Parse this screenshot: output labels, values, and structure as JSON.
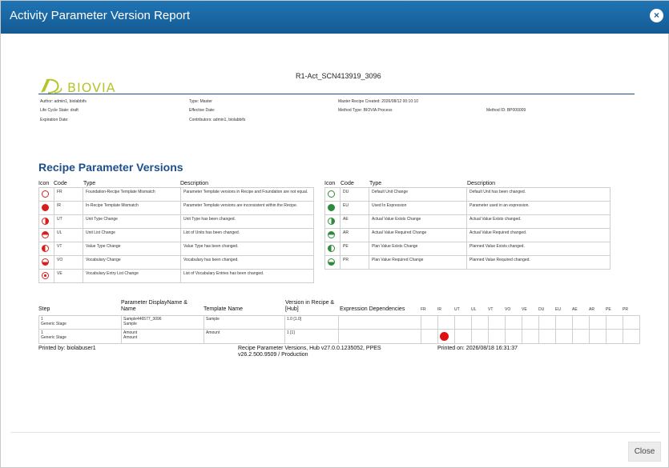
{
  "dialog": {
    "title": "Activity Parameter Version Report",
    "close_icon": "×",
    "close_label": "Close"
  },
  "report": {
    "title": "R1-Act_SCN413919_3096",
    "logo_text": "BIOVIA",
    "meta": {
      "author": "Author: admin1, biolabbifs",
      "lifecycle": "Life Cycle State: draft",
      "expiration": "Expiration Date:",
      "type": "Type: Master",
      "effective": "Effective Date:",
      "contributors": "Contributors: admin1, biolabbifs",
      "created": "Master Recipe Created: 2026/08/12 00:10:10",
      "method_type": "Method Type: BIOVIA Process",
      "method_id": "Method ID: BP000009"
    },
    "section_title": "Recipe Parameter Versions",
    "legend_headers": {
      "icon": "Icon",
      "code": "Code",
      "type": "Type",
      "description": "Description"
    },
    "legend_left": [
      {
        "icon": "red-ring",
        "code": "FR",
        "type": "Foundation-Recipe Template Mismatch",
        "description": "Parameter Template versions in Recipe and Foundation are not equal."
      },
      {
        "icon": "red-filled",
        "code": "IR",
        "type": "In-Recipe Template Mismatch",
        "description": "Parameter Template versions are inconsistent within the Recipe."
      },
      {
        "icon": "red-half-right",
        "code": "UT",
        "type": "Unit Type Change",
        "description": "Unit Type has been changed."
      },
      {
        "icon": "red-half-top",
        "code": "UL",
        "type": "Unit List Change",
        "description": "List of Units has been changed."
      },
      {
        "icon": "red-half-left",
        "code": "VT",
        "type": "Value Type Change",
        "description": "Value Type has been changed."
      },
      {
        "icon": "red-half-bottom",
        "code": "VO",
        "type": "Vocabulary Change",
        "description": "Vocabulary has been changed."
      },
      {
        "icon": "red-target",
        "code": "VE",
        "type": "Vocabulary Entry List Change",
        "description": "List of Vocabulary Entries has been changed."
      }
    ],
    "legend_right": [
      {
        "icon": "green-ring",
        "code": "DU",
        "type": "Default Unit Change",
        "description": "Default Unit has been changed."
      },
      {
        "icon": "green-filled",
        "code": "EU",
        "type": "Used In Expression",
        "description": "Parameter used in an expression."
      },
      {
        "icon": "green-half-right",
        "code": "AE",
        "type": "Actual Value Exists Change",
        "description": "Actual Value Exists changed."
      },
      {
        "icon": "green-half-top",
        "code": "AR",
        "type": "Actual Value Required Change",
        "description": "Actual Value Required changed."
      },
      {
        "icon": "green-half-left",
        "code": "PE",
        "type": "Plan Value Exists Change",
        "description": "Planned Value Exists changed."
      },
      {
        "icon": "green-half-bottom",
        "code": "PR",
        "type": "Plan Value Required Change",
        "description": "Planned Value Required changed."
      }
    ],
    "table_headers": {
      "step": "Step",
      "param": "Parameter DisplayName & Name",
      "template": "Template Name",
      "version": "Version in Recipe & [Hub]",
      "expr": "Expression Dependencies",
      "codes": [
        "FR",
        "IR",
        "UT",
        "UL",
        "VT",
        "VO",
        "VE",
        "DU",
        "EU",
        "AE",
        "AR",
        "PE",
        "PR"
      ]
    },
    "rows": [
      {
        "step_num": "1",
        "step_name": "Generic Stage",
        "param_display": "Sample446577_3096",
        "param_name": "Sample",
        "template": "Sample",
        "version": "1.0  [1.0]",
        "flags": {}
      },
      {
        "step_num": "1",
        "step_name": "Generic Stage",
        "param_display": "Amount",
        "param_name": "Amount",
        "template": "Amount",
        "version": "1  [1]",
        "flags": {
          "IR": "red"
        }
      }
    ],
    "footer": {
      "printed_by": "Printed by: biolabuser1",
      "version_line1": "Recipe Parameter Versions, Hub v27.0.0.1235052, PPES",
      "version_line2": "v26.2.500.9509 / Production",
      "printed_on": "Printed on:  2026/08/18 16:31:37"
    }
  }
}
